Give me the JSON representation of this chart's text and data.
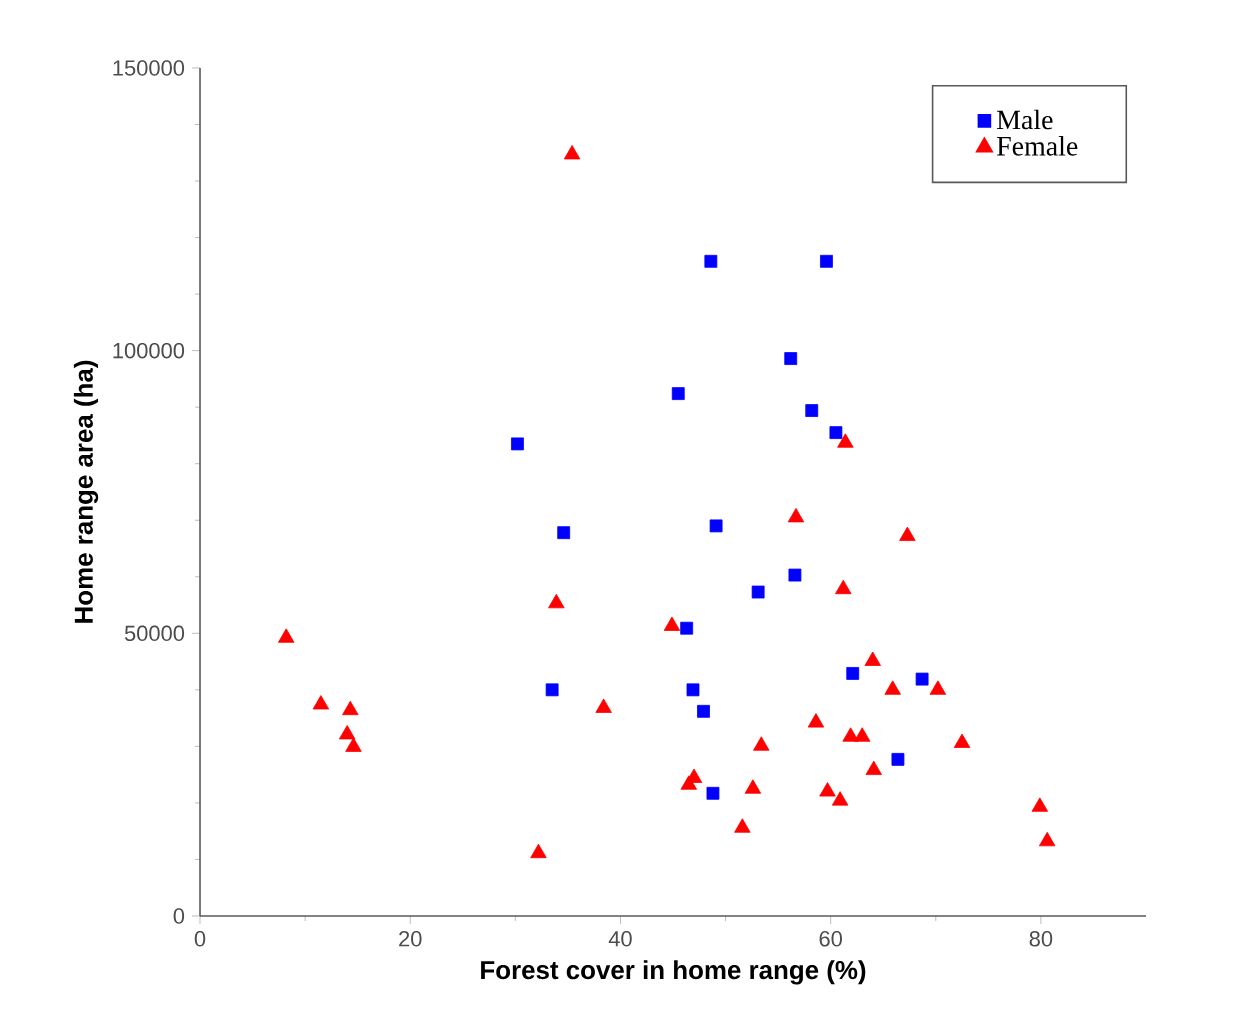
{
  "chart_data": {
    "type": "scatter",
    "xlabel": "Forest cover in home range (%)",
    "ylabel": "Home range area (ha)",
    "xlim": [
      0,
      90
    ],
    "ylim": [
      0,
      150000
    ],
    "xticks": [
      0,
      20,
      40,
      60,
      80
    ],
    "yticks": [
      0,
      50000,
      100000,
      150000
    ],
    "legend": "top right",
    "grid": false,
    "series": [
      {
        "name": "Male",
        "color": "#0000ff",
        "marker": "square",
        "x": [
          30.2,
          34.6,
          33.5,
          45.5,
          46.3,
          46.9,
          47.9,
          48.8,
          48.6,
          49.1,
          59.6,
          56.2,
          58.2,
          60.5,
          56.6,
          53.1,
          62.1,
          68.7,
          66.4
        ],
        "values": [
          83500,
          67800,
          40000,
          92400,
          50900,
          40000,
          36200,
          21700,
          115800,
          69000,
          115800,
          98600,
          89400,
          85500,
          60300,
          57300,
          42900,
          41900,
          27700
        ]
      },
      {
        "name": "Female",
        "color": "#ff0000",
        "marker": "triangle",
        "x": [
          35.4,
          8.2,
          11.5,
          14.3,
          14.0,
          14.6,
          33.9,
          38.4,
          32.2,
          44.9,
          47.0,
          46.5,
          61.4,
          56.7,
          67.3,
          61.2,
          64.0,
          65.9,
          70.2,
          58.6,
          53.4,
          61.9,
          63.0,
          72.5,
          64.1,
          52.6,
          59.7,
          60.9,
          51.6,
          79.9,
          80.6
        ],
        "values": [
          134700,
          49200,
          37400,
          36400,
          32100,
          29900,
          55300,
          36800,
          11100,
          51300,
          24400,
          23200,
          83700,
          70500,
          67200,
          57800,
          45100,
          40000,
          40000,
          34200,
          30100,
          31700,
          31700,
          30600,
          25800,
          22500,
          22000,
          20400,
          15600,
          19300,
          13200
        ]
      }
    ]
  }
}
